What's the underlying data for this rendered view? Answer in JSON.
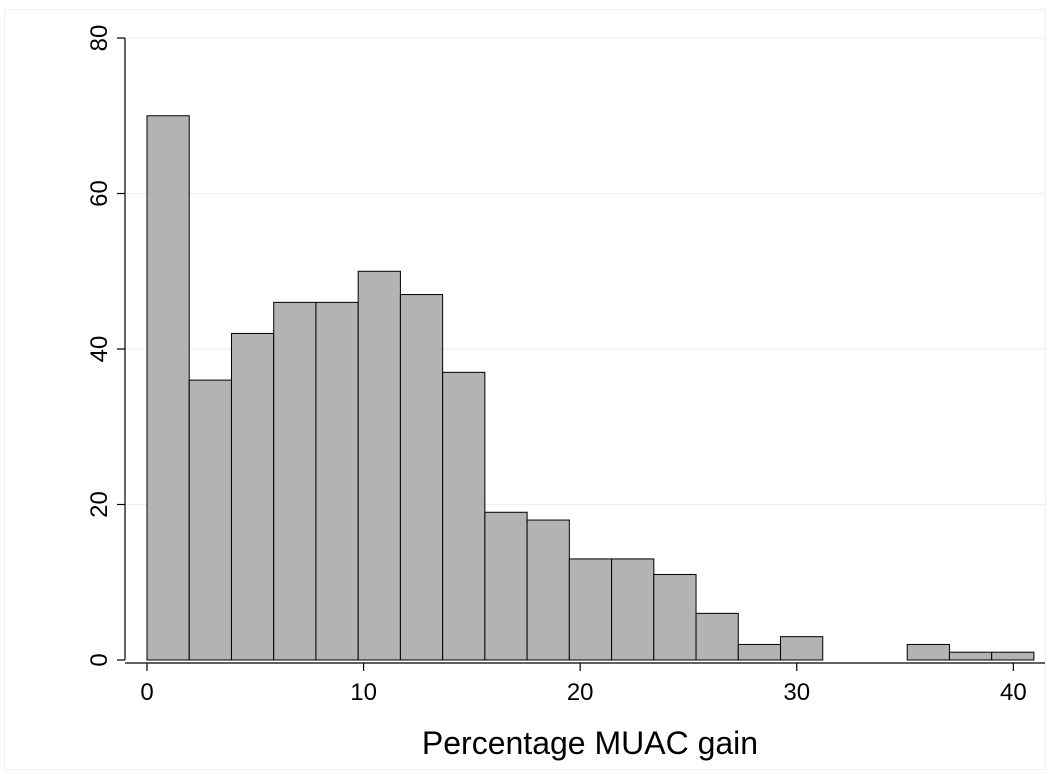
{
  "chart_data": {
    "type": "bar",
    "title": "",
    "xlabel": "Percentage MUAC gain",
    "ylabel": "",
    "xlim": [
      0,
      41
    ],
    "ylim": [
      0,
      80
    ],
    "bin_width": 1.95,
    "bins": [
      {
        "start": 0.0,
        "count": 70
      },
      {
        "start": 1.95,
        "count": 36
      },
      {
        "start": 3.9,
        "count": 42
      },
      {
        "start": 5.85,
        "count": 46
      },
      {
        "start": 7.8,
        "count": 46
      },
      {
        "start": 9.75,
        "count": 50
      },
      {
        "start": 11.7,
        "count": 47
      },
      {
        "start": 13.65,
        "count": 37
      },
      {
        "start": 15.6,
        "count": 19
      },
      {
        "start": 17.55,
        "count": 18
      },
      {
        "start": 19.5,
        "count": 13
      },
      {
        "start": 21.45,
        "count": 13
      },
      {
        "start": 23.4,
        "count": 11
      },
      {
        "start": 25.35,
        "count": 6
      },
      {
        "start": 27.3,
        "count": 2
      },
      {
        "start": 29.25,
        "count": 3
      },
      {
        "start": 35.1,
        "count": 2
      },
      {
        "start": 37.05,
        "count": 1
      },
      {
        "start": 39.0,
        "count": 1
      }
    ],
    "x_ticks": [
      "0",
      "10",
      "20",
      "30",
      "40"
    ],
    "y_ticks": [
      "0",
      "20",
      "40",
      "60",
      "80"
    ],
    "grid": true,
    "colors": {
      "bar_fill": "#b3b3b3",
      "bar_edge": "#000000",
      "grid": "#eaf2f3"
    }
  }
}
